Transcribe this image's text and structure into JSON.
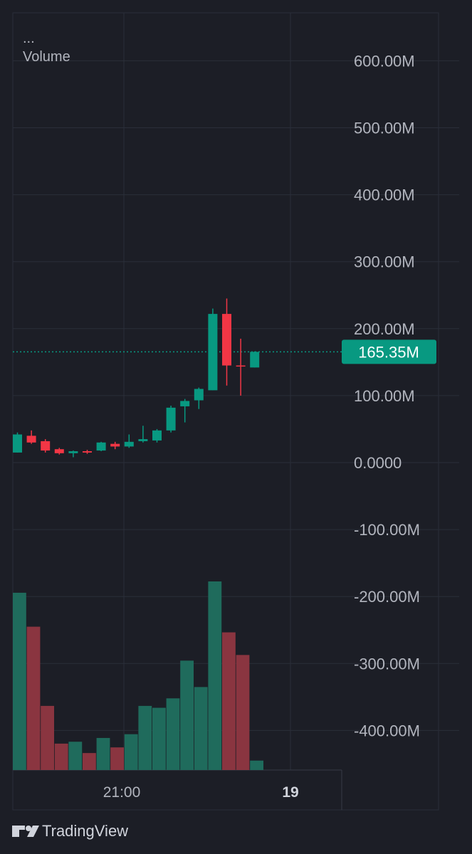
{
  "legend": {
    "menu": "...",
    "title": "Volume"
  },
  "brand": {
    "name": "TradingView",
    "logo_icon": "tradingview-logo-icon"
  },
  "price_axis": {
    "ticks": [
      "600.00M",
      "500.00M",
      "400.00M",
      "300.00M",
      "200.00M",
      "100.00M",
      "0.0000",
      "-100.00M",
      "-200.00M",
      "-300.00M",
      "-400.00M"
    ]
  },
  "time_axis": {
    "labels": [
      {
        "text": "21:00",
        "bold": false
      },
      {
        "text": "19",
        "bold": true
      }
    ]
  },
  "last_price": {
    "label": "165.35M",
    "value": 165.35,
    "color": "#089981"
  },
  "colors": {
    "up": "#089981",
    "down": "#f23645",
    "up_volume": "#1f6b5c",
    "down_volume": "#8a3540",
    "grid": "#2a2e39",
    "axis_text": "#b2b5be"
  },
  "chart_data": {
    "type": "candlestick",
    "unit": "M",
    "ylim": [
      -430,
      640
    ],
    "candles": [
      {
        "open": 15,
        "high": 45,
        "low": 15,
        "close": 42
      },
      {
        "open": 40,
        "high": 48,
        "low": 28,
        "close": 30
      },
      {
        "open": 32,
        "high": 35,
        "low": 15,
        "close": 18
      },
      {
        "open": 20,
        "high": 22,
        "low": 12,
        "close": 14
      },
      {
        "open": 14,
        "high": 18,
        "low": 8,
        "close": 17
      },
      {
        "open": 17,
        "high": 19,
        "low": 13,
        "close": 15
      },
      {
        "open": 18,
        "high": 31,
        "low": 17,
        "close": 30
      },
      {
        "open": 28,
        "high": 31,
        "low": 20,
        "close": 24
      },
      {
        "open": 24,
        "high": 42,
        "low": 22,
        "close": 31
      },
      {
        "open": 32,
        "high": 55,
        "low": 30,
        "close": 35
      },
      {
        "open": 33,
        "high": 50,
        "low": 30,
        "close": 48
      },
      {
        "open": 48,
        "high": 85,
        "low": 45,
        "close": 82
      },
      {
        "open": 84,
        "high": 95,
        "low": 60,
        "close": 92
      },
      {
        "open": 93,
        "high": 112,
        "low": 80,
        "close": 110
      },
      {
        "open": 108,
        "high": 230,
        "low": 108,
        "close": 222
      },
      {
        "open": 222,
        "high": 245,
        "low": 115,
        "close": 145
      },
      {
        "open": 145,
        "high": 185,
        "low": 100,
        "close": 144
      },
      {
        "open": 142,
        "high": 166,
        "low": 142,
        "close": 165.35
      }
    ],
    "volume_relative": [
      0.94,
      0.76,
      0.34,
      0.14,
      0.15,
      0.09,
      0.17,
      0.12,
      0.19,
      0.34,
      0.33,
      0.38,
      0.58,
      0.44,
      1.0,
      0.73,
      0.61,
      0.05
    ]
  }
}
